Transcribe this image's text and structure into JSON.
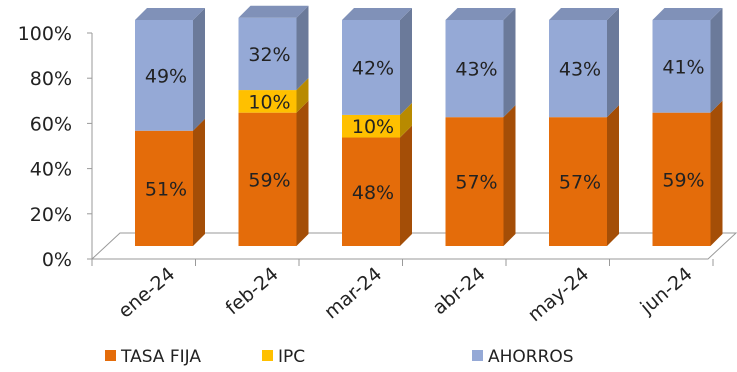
{
  "chart_data": {
    "type": "bar",
    "stacked": true,
    "percent_stacked": true,
    "three_d": true,
    "categories": [
      "ene-24",
      "feb-24",
      "mar-24",
      "abr-24",
      "may-24",
      "jun-24"
    ],
    "series": [
      {
        "name": "TASA FIJA",
        "color": "#E46C0A",
        "values": [
          51,
          59,
          48,
          57,
          57,
          59
        ],
        "labels": [
          "51%",
          "59%",
          "48%",
          "57%",
          "57%",
          "59%"
        ]
      },
      {
        "name": "IPC",
        "color": "#FFC000",
        "values": [
          0,
          10,
          10,
          0,
          0,
          0
        ],
        "labels": [
          "",
          "10%",
          "10%",
          "",
          "",
          ""
        ]
      },
      {
        "name": "AHORROS",
        "color": "#95A9D6",
        "values": [
          49,
          32,
          42,
          43,
          43,
          41
        ],
        "labels": [
          "49%",
          "32%",
          "42%",
          "43%",
          "43%",
          "41%"
        ]
      }
    ],
    "y_ticks": [
      "0%",
      "20%",
      "40%",
      "60%",
      "80%",
      "100%"
    ],
    "ylim": [
      0,
      100
    ],
    "legend_position": "bottom",
    "grid": false
  }
}
